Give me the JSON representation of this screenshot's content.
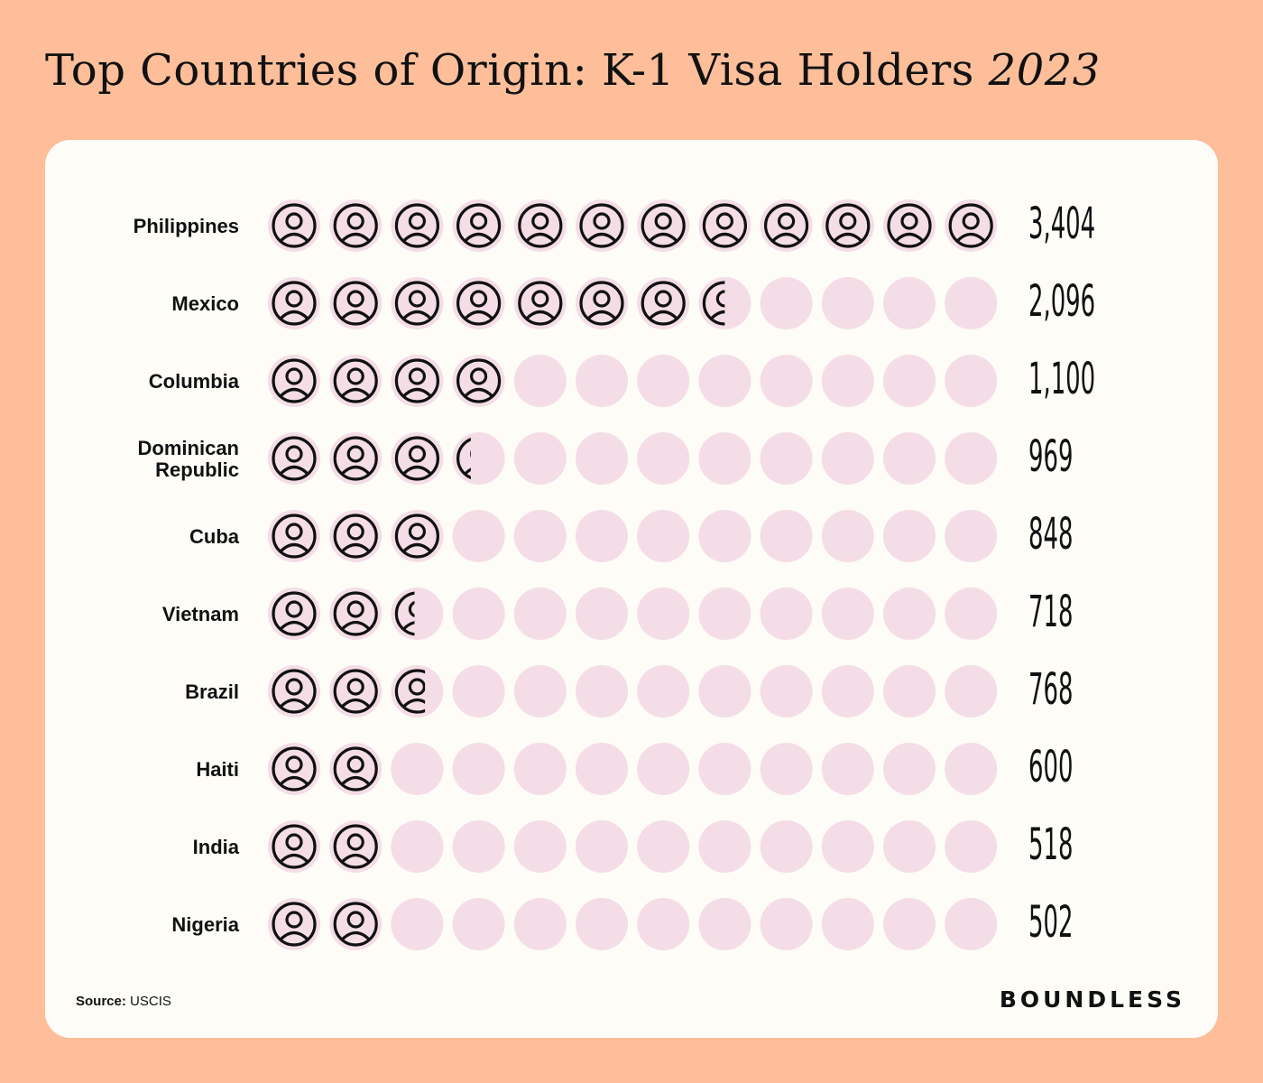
{
  "header": {
    "title": "Top Countries of Origin: K-1 Visa Holders",
    "year": "2023"
  },
  "footer": {
    "source_label": "Source:",
    "source_value": "USCIS",
    "brand": "BOUNDLESS"
  },
  "colors": {
    "background": "#FDBE99",
    "card": "#FDFCF7",
    "circle": "#F4DDE6",
    "icon_stroke": "#111111"
  },
  "chart_data": {
    "type": "pictogram",
    "icons_per_row": 12,
    "icon_fill_fraction_note": "",
    "categories": [
      "Philippines",
      "Mexico",
      "Columbia",
      "Dominican Republic",
      "Cuba",
      "Vietnam",
      "Brazil",
      "Haiti",
      "India",
      "Nigeria"
    ],
    "labels": [
      [
        "Philippines"
      ],
      [
        "Mexico"
      ],
      [
        "Columbia"
      ],
      [
        "Dominican",
        "Republic"
      ],
      [
        "Cuba"
      ],
      [
        "Vietnam"
      ],
      [
        "Brazil"
      ],
      [
        "Haiti"
      ],
      [
        "India"
      ],
      [
        "Nigeria"
      ]
    ],
    "value_labels": [
      "3,404",
      "2,096",
      "1,100",
      "969",
      "848",
      "718",
      "768",
      "600",
      "518",
      "502"
    ],
    "icons_filled": [
      12,
      7.5,
      4,
      3.35,
      3,
      2.45,
      2.65,
      2,
      2,
      2
    ]
  }
}
